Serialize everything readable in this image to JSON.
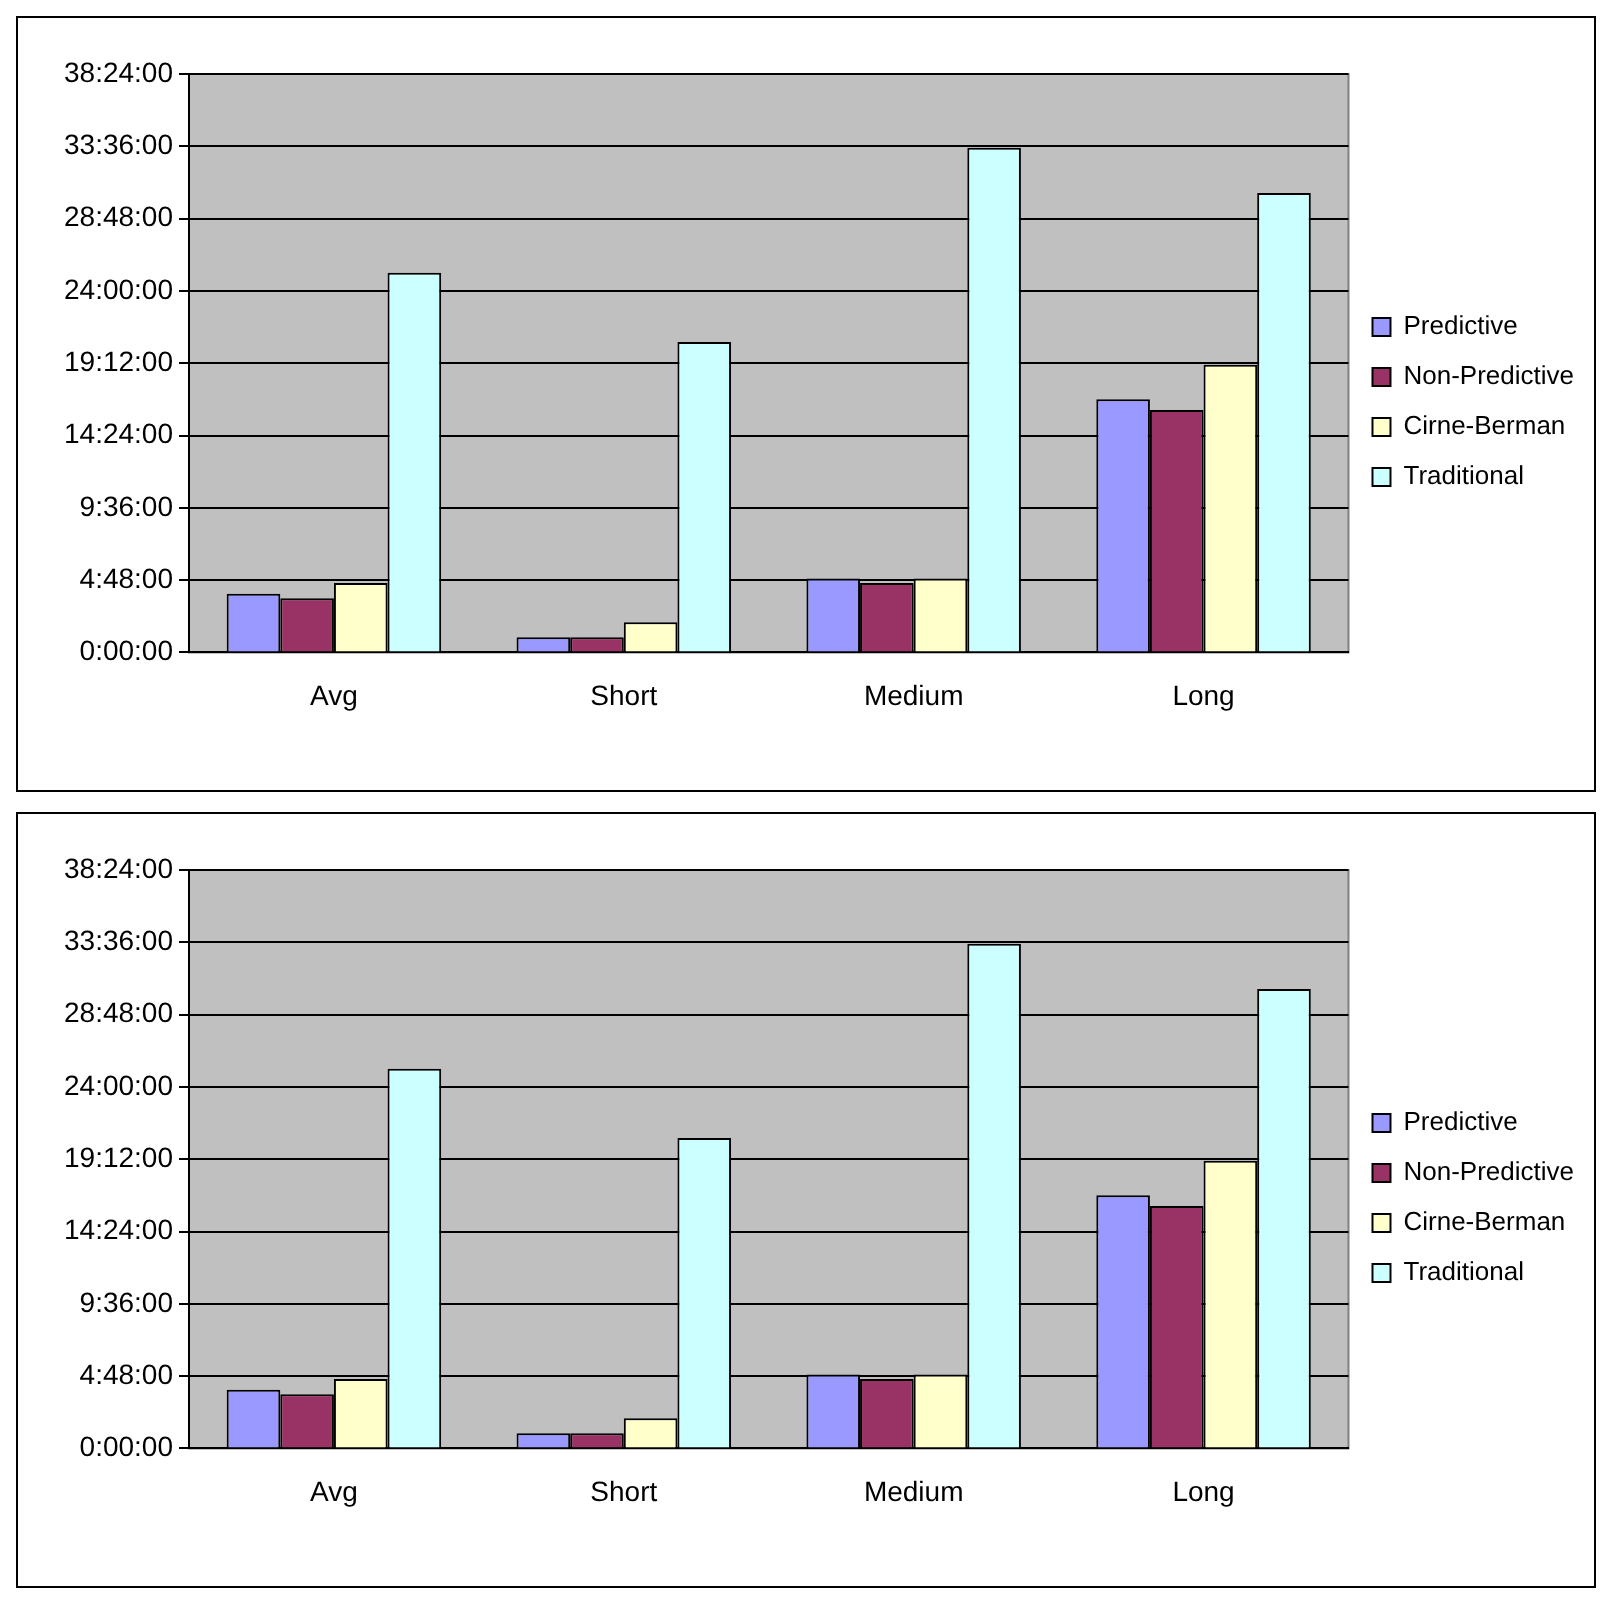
{
  "chart_data": [
    {
      "type": "bar",
      "categories": [
        "Avg",
        "Short",
        "Medium",
        "Long"
      ],
      "series": [
        {
          "name": "Predictive",
          "color": "#9999ff",
          "values": [
            3.9,
            1.0,
            4.9,
            16.8
          ]
        },
        {
          "name": "Non-Predictive",
          "color": "#993366",
          "values": [
            3.6,
            1.0,
            4.6,
            16.1
          ]
        },
        {
          "name": "Cirne-Berman",
          "color": "#ffffcc",
          "values": [
            4.6,
            2.0,
            4.9,
            19.1
          ]
        },
        {
          "name": "Traditional",
          "color": "#ccffff",
          "values": [
            25.2,
            20.6,
            33.5,
            30.5
          ]
        }
      ],
      "ylim": [
        0,
        38.4
      ],
      "yticks": [
        {
          "value": 0,
          "label": "0:00:00"
        },
        {
          "value": 4.8,
          "label": "4:48:00"
        },
        {
          "value": 9.6,
          "label": "9:36:00"
        },
        {
          "value": 14.4,
          "label": "14:24:00"
        },
        {
          "value": 19.2,
          "label": "19:12:00"
        },
        {
          "value": 24,
          "label": "24:00:00"
        },
        {
          "value": 28.8,
          "label": "28:48:00"
        },
        {
          "value": 33.6,
          "label": "33:36:00"
        },
        {
          "value": 38.4,
          "label": "38:24:00"
        }
      ],
      "grid": "y",
      "legend": "right"
    },
    {
      "type": "bar",
      "categories": [
        "Avg",
        "Short",
        "Medium",
        "Long"
      ],
      "series": [
        {
          "name": "Predictive",
          "color": "#9999ff",
          "values": [
            3.9,
            1.0,
            4.9,
            16.8
          ]
        },
        {
          "name": "Non-Predictive",
          "color": "#993366",
          "values": [
            3.6,
            1.0,
            4.6,
            16.1
          ]
        },
        {
          "name": "Cirne-Berman",
          "color": "#ffffcc",
          "values": [
            4.6,
            2.0,
            4.9,
            19.1
          ]
        },
        {
          "name": "Traditional",
          "color": "#ccffff",
          "values": [
            25.2,
            20.6,
            33.5,
            30.5
          ]
        }
      ],
      "ylim": [
        0,
        38.4
      ],
      "yticks": [
        {
          "value": 0,
          "label": "0:00:00"
        },
        {
          "value": 4.8,
          "label": "4:48:00"
        },
        {
          "value": 9.6,
          "label": "9:36:00"
        },
        {
          "value": 14.4,
          "label": "14:24:00"
        },
        {
          "value": 19.2,
          "label": "19:12:00"
        },
        {
          "value": 24,
          "label": "24:00:00"
        },
        {
          "value": 28.8,
          "label": "28:48:00"
        },
        {
          "value": 33.6,
          "label": "33:36:00"
        },
        {
          "value": 38.4,
          "label": "38:24:00"
        }
      ],
      "grid": "y",
      "legend": "right"
    }
  ]
}
